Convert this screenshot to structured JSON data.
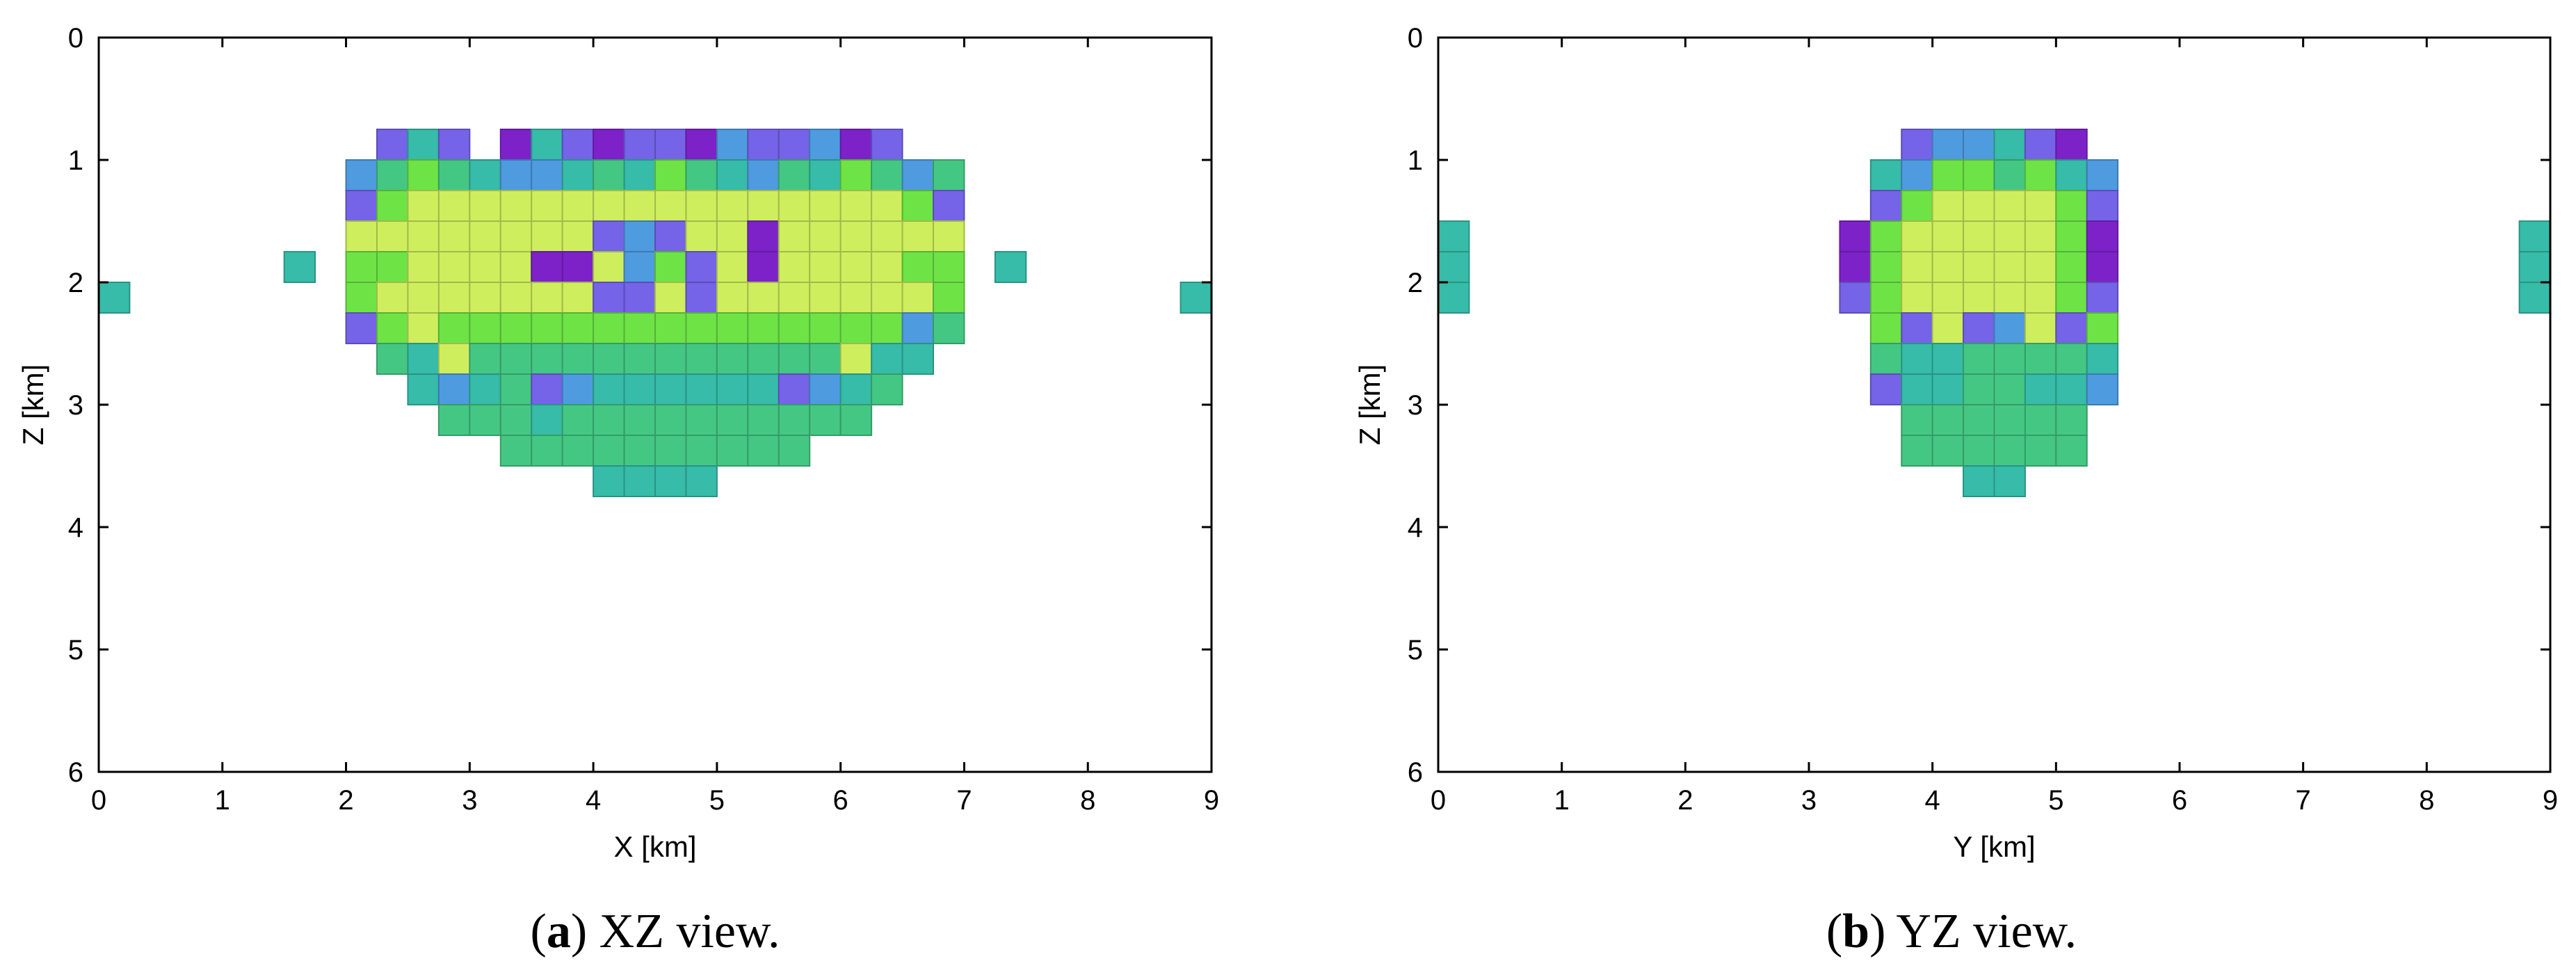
{
  "chart_data": [
    {
      "type": "heatmap",
      "panel_id": "a",
      "caption_letter": "a",
      "caption_text": "XZ view.",
      "xlabel": "X [km]",
      "ylabel": "Z [km]",
      "xlim": [
        0,
        9
      ],
      "ylim": [
        6,
        0
      ],
      "y_inverted": true,
      "xticks": [
        0,
        1,
        2,
        3,
        4,
        5,
        6,
        7,
        8,
        9
      ],
      "yticks": [
        0,
        1,
        2,
        3,
        4,
        5,
        6
      ],
      "cell_size_km": 0.25,
      "colors": {
        "0": "#7d22c9",
        "1": "#7563e8",
        "2": "#4f9be0",
        "3": "#36bca8",
        "4": "#45c784",
        "5": "#6ee346",
        "6": "#cfee5e"
      },
      "rows": [
        {
          "z": 0.75,
          "x0": 2.25,
          "levels": [
            1,
            3,
            1,
            null,
            0,
            3,
            1,
            0,
            1,
            1,
            0,
            2,
            1,
            1,
            2,
            0,
            1
          ]
        },
        {
          "z": 1.0,
          "x0": 2.0,
          "levels": [
            2,
            4,
            5,
            4,
            3,
            2,
            2,
            3,
            4,
            3,
            5,
            4,
            3,
            2,
            4,
            3,
            5,
            4,
            2,
            4
          ]
        },
        {
          "z": 1.25,
          "x0": 2.0,
          "levels": [
            1,
            5,
            6,
            6,
            6,
            6,
            6,
            6,
            6,
            6,
            6,
            6,
            6,
            6,
            6,
            6,
            6,
            6,
            5,
            1
          ]
        },
        {
          "z": 1.5,
          "x0": 2.0,
          "levels": [
            6,
            6,
            6,
            6,
            6,
            6,
            6,
            6,
            1,
            2,
            1,
            6,
            6,
            0,
            6,
            6,
            6,
            6,
            6,
            6
          ]
        },
        {
          "z": 1.75,
          "x0": 1.5,
          "levels": [
            3,
            null,
            5,
            5,
            6,
            6,
            6,
            6,
            0,
            0,
            6,
            2,
            5,
            1,
            6,
            0,
            6,
            6,
            6,
            6,
            5,
            5,
            null,
            3
          ]
        },
        {
          "z": 2.0,
          "x0": 0.0,
          "levels": [
            3
          ]
        },
        {
          "z": 2.0,
          "x0": 2.0,
          "levels": [
            5,
            6,
            6,
            6,
            6,
            6,
            6,
            6,
            1,
            1,
            6,
            1,
            6,
            6,
            6,
            6,
            6,
            6,
            6,
            5
          ]
        },
        {
          "z": 2.0,
          "x0": 8.75,
          "levels": [
            3
          ]
        },
        {
          "z": 2.25,
          "x0": 2.0,
          "levels": [
            1,
            5,
            6,
            5,
            5,
            5,
            5,
            5,
            5,
            5,
            5,
            5,
            5,
            5,
            5,
            5,
            5,
            5,
            2,
            4
          ]
        },
        {
          "z": 2.5,
          "x0": 2.25,
          "levels": [
            4,
            3,
            6,
            4,
            4,
            4,
            4,
            4,
            4,
            4,
            4,
            4,
            4,
            4,
            4,
            6,
            3,
            3
          ]
        },
        {
          "z": 2.75,
          "x0": 2.5,
          "levels": [
            3,
            2,
            3,
            4,
            1,
            2,
            3,
            3,
            3,
            3,
            3,
            3,
            1,
            2,
            3,
            4
          ]
        },
        {
          "z": 3.0,
          "x0": 2.75,
          "levels": [
            4,
            4,
            4,
            3,
            4,
            4,
            4,
            4,
            4,
            4,
            4,
            4,
            4,
            4
          ]
        },
        {
          "z": 3.25,
          "x0": 3.25,
          "levels": [
            4,
            4,
            4,
            4,
            4,
            4,
            4,
            4,
            4,
            4
          ]
        },
        {
          "z": 3.5,
          "x0": 4.0,
          "levels": [
            3,
            3,
            3,
            3
          ]
        }
      ]
    },
    {
      "type": "heatmap",
      "panel_id": "b",
      "caption_letter": "b",
      "caption_text": "YZ view.",
      "xlabel": "Y [km]",
      "ylabel": "Z [km]",
      "xlim": [
        0,
        9
      ],
      "ylim": [
        6,
        0
      ],
      "y_inverted": true,
      "xticks": [
        0,
        1,
        2,
        3,
        4,
        5,
        6,
        7,
        8,
        9
      ],
      "yticks": [
        0,
        1,
        2,
        3,
        4,
        5,
        6
      ],
      "cell_size_km": 0.25,
      "colors": {
        "0": "#7d22c9",
        "1": "#7563e8",
        "2": "#4f9be0",
        "3": "#36bca8",
        "4": "#45c784",
        "5": "#6ee346",
        "6": "#cfee5e"
      },
      "rows": [
        {
          "z": 0.75,
          "x0": 3.75,
          "levels": [
            1,
            2,
            2,
            3,
            1,
            0
          ]
        },
        {
          "z": 1.0,
          "x0": 3.5,
          "levels": [
            3,
            2,
            5,
            5,
            4,
            5,
            3,
            2
          ]
        },
        {
          "z": 1.25,
          "x0": 3.5,
          "levels": [
            1,
            5,
            6,
            6,
            6,
            6,
            5,
            1
          ]
        },
        {
          "z": 1.5,
          "x0": 0.0,
          "levels": [
            3
          ]
        },
        {
          "z": 1.5,
          "x0": 3.25,
          "levels": [
            0,
            5,
            6,
            6,
            6,
            6,
            6,
            5,
            0
          ]
        },
        {
          "z": 1.5,
          "x0": 8.75,
          "levels": [
            3
          ]
        },
        {
          "z": 1.75,
          "x0": 0.0,
          "levels": [
            3
          ]
        },
        {
          "z": 1.75,
          "x0": 3.25,
          "levels": [
            0,
            5,
            6,
            6,
            6,
            6,
            6,
            5,
            0
          ]
        },
        {
          "z": 1.75,
          "x0": 8.75,
          "levels": [
            3
          ]
        },
        {
          "z": 2.0,
          "x0": 0.0,
          "levels": [
            3
          ]
        },
        {
          "z": 2.0,
          "x0": 3.25,
          "levels": [
            1,
            5,
            6,
            6,
            6,
            6,
            6,
            5,
            1
          ]
        },
        {
          "z": 2.0,
          "x0": 8.75,
          "levels": [
            3
          ]
        },
        {
          "z": 2.25,
          "x0": 3.5,
          "levels": [
            5,
            1,
            6,
            1,
            2,
            6,
            1,
            5
          ]
        },
        {
          "z": 2.5,
          "x0": 3.5,
          "levels": [
            4,
            3,
            3,
            4,
            4,
            4,
            4,
            3
          ]
        },
        {
          "z": 2.75,
          "x0": 3.5,
          "levels": [
            1,
            3,
            3,
            4,
            4,
            3,
            3,
            2
          ]
        },
        {
          "z": 3.0,
          "x0": 3.75,
          "levels": [
            4,
            4,
            4,
            4,
            4,
            4
          ]
        },
        {
          "z": 3.25,
          "x0": 3.75,
          "levels": [
            4,
            4,
            4,
            4,
            4,
            4
          ]
        },
        {
          "z": 3.5,
          "x0": 4.25,
          "levels": [
            3,
            3
          ]
        }
      ]
    }
  ]
}
